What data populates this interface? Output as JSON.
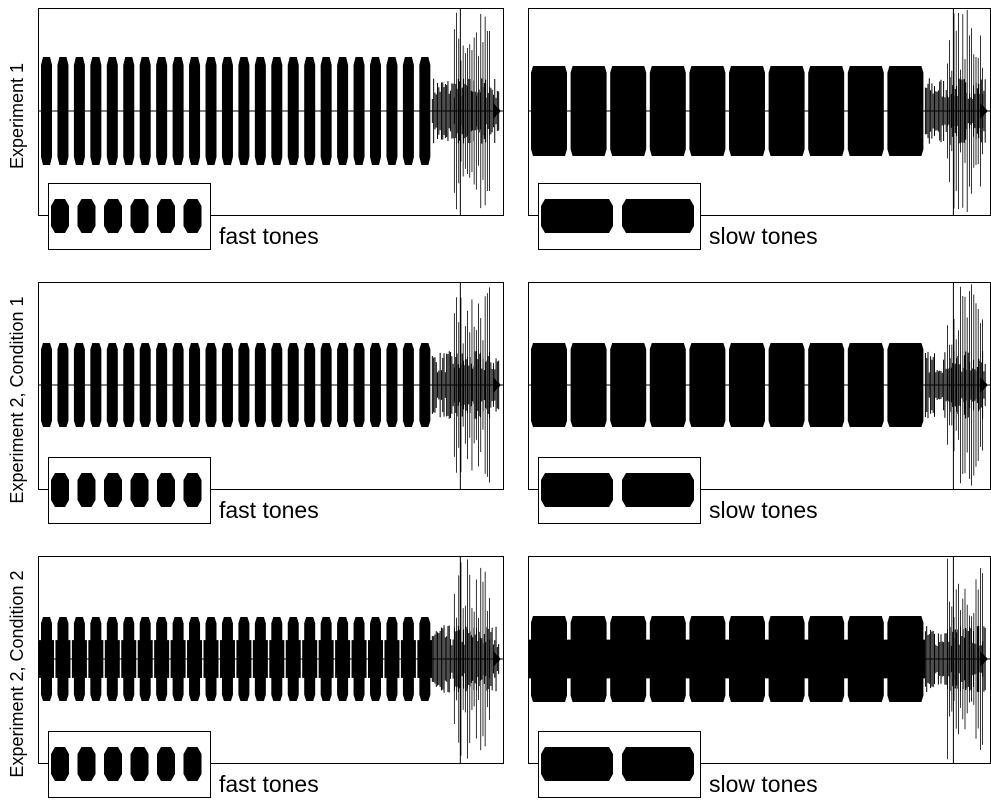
{
  "rows": [
    {
      "label": "Experiment 1",
      "panels": [
        {
          "caption": "fast tones"
        },
        {
          "caption": "slow tones"
        }
      ]
    },
    {
      "label": "Experiment 2, Condition 1",
      "panels": [
        {
          "caption": "fast tones"
        },
        {
          "caption": "slow tones"
        }
      ]
    },
    {
      "label": "Experiment 2, Condition 2",
      "panels": [
        {
          "caption": "fast tones"
        },
        {
          "caption": "slow tones"
        }
      ]
    }
  ]
}
